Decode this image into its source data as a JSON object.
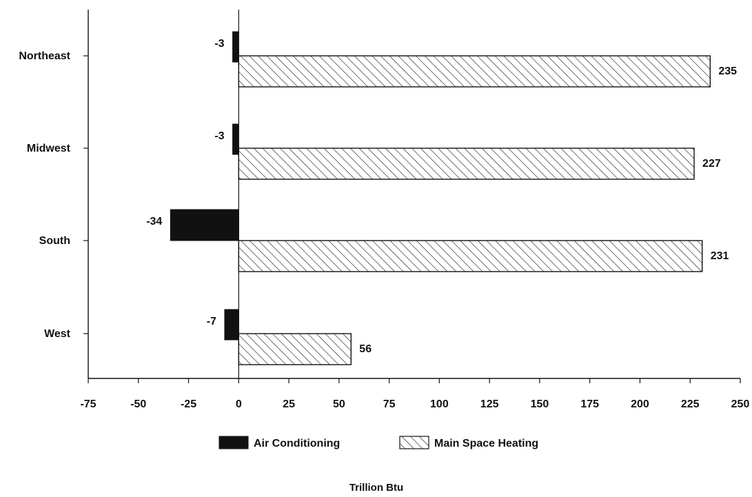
{
  "chart_data": {
    "type": "bar",
    "orientation": "horizontal",
    "categories": [
      "Northeast",
      "Midwest",
      "South",
      "West"
    ],
    "series": [
      {
        "name": "Air Conditioning",
        "values": [
          -3,
          -3,
          -34,
          -7
        ],
        "color": "#111111",
        "fill": "solid"
      },
      {
        "name": "Main Space Heating",
        "values": [
          235,
          227,
          231,
          56
        ],
        "color": "#111111",
        "fill": "diagonal-hatch"
      }
    ],
    "data_labels": [
      [
        "-3",
        "-3",
        "-34",
        "-7"
      ],
      [
        "235",
        "227",
        "231",
        "56"
      ]
    ],
    "xticks": [
      "-75",
      "-50",
      "-25",
      "0",
      "25",
      "50",
      "75",
      "100",
      "125",
      "150",
      "175",
      "200",
      "225",
      "250"
    ],
    "xlim": [
      -75,
      250
    ],
    "xlabel": "Trillion Btu",
    "ylabel": "",
    "title": "",
    "grid": false,
    "legend_position": "bottom-center"
  }
}
